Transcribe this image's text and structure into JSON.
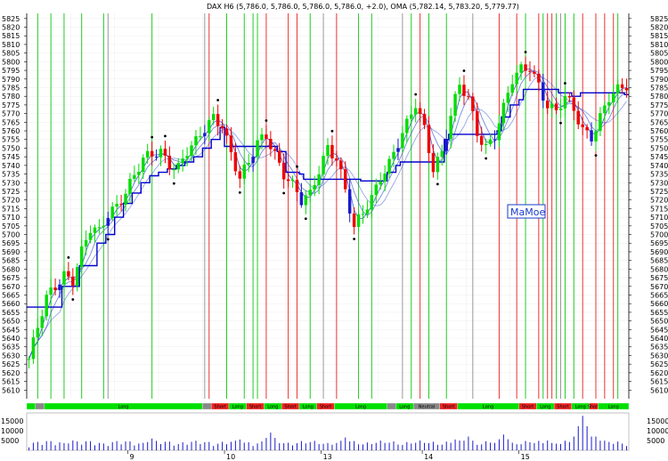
{
  "chart_data": {
    "type": "candlestick",
    "header_text": "DAX H6 (5,786.0, 5,786.0, 5,786.0, 5,786.0, +2.0), OMA (5,782.14, 5,783.20, 5,779.77)",
    "instrument": "DAX H6",
    "ohlc_last": [
      5786.0,
      5786.0,
      5786.0,
      5786.0
    ],
    "change": 2.0,
    "oma_values": [
      5782.14,
      5783.2,
      5779.77
    ],
    "watermark": "MaMoe",
    "price_axis": {
      "min": 5605,
      "max": 5828,
      "ticks": [
        5610,
        5615,
        5620,
        5625,
        5630,
        5635,
        5640,
        5645,
        5650,
        5655,
        5660,
        5665,
        5670,
        5675,
        5680,
        5685,
        5690,
        5695,
        5700,
        5705,
        5710,
        5715,
        5720,
        5725,
        5730,
        5735,
        5740,
        5745,
        5750,
        5755,
        5760,
        5765,
        5770,
        5775,
        5780,
        5785,
        5790,
        5795,
        5800,
        5805,
        5810,
        5815,
        5820,
        5825
      ]
    },
    "volume_axis": {
      "min": 0,
      "max": 19000,
      "ticks": [
        5000,
        10000,
        15000
      ]
    },
    "x_day_labels": [
      {
        "label": "9",
        "bar": 23
      },
      {
        "label": "10",
        "bar": 45
      },
      {
        "label": "13",
        "bar": 67
      },
      {
        "label": "14",
        "bar": 90
      },
      {
        "label": "15",
        "bar": 112
      }
    ],
    "close_path": [
      [
        0,
        5628
      ],
      [
        2,
        5645
      ],
      [
        4,
        5662
      ],
      [
        6,
        5670
      ],
      [
        8,
        5678
      ],
      [
        10,
        5675
      ],
      [
        12,
        5690
      ],
      [
        14,
        5702
      ],
      [
        16,
        5700
      ],
      [
        18,
        5712
      ],
      [
        20,
        5718
      ],
      [
        22,
        5726
      ],
      [
        24,
        5734
      ],
      [
        26,
        5742
      ],
      [
        28,
        5745
      ],
      [
        30,
        5748
      ],
      [
        32,
        5742
      ],
      [
        34,
        5740
      ],
      [
        36,
        5748
      ],
      [
        38,
        5752
      ],
      [
        40,
        5760
      ],
      [
        42,
        5768
      ],
      [
        44,
        5765
      ],
      [
        46,
        5748
      ],
      [
        48,
        5732
      ],
      [
        50,
        5740
      ],
      [
        52,
        5752
      ],
      [
        54,
        5758
      ],
      [
        56,
        5748
      ],
      [
        58,
        5736
      ],
      [
        60,
        5728
      ],
      [
        62,
        5718
      ],
      [
        64,
        5722
      ],
      [
        66,
        5738
      ],
      [
        68,
        5752
      ],
      [
        70,
        5745
      ],
      [
        72,
        5725
      ],
      [
        74,
        5702
      ],
      [
        76,
        5712
      ],
      [
        78,
        5722
      ],
      [
        80,
        5735
      ],
      [
        82,
        5742
      ],
      [
        84,
        5752
      ],
      [
        86,
        5762
      ],
      [
        88,
        5775
      ],
      [
        90,
        5762
      ],
      [
        92,
        5740
      ],
      [
        94,
        5748
      ],
      [
        96,
        5768
      ],
      [
        98,
        5785
      ],
      [
        100,
        5778
      ],
      [
        102,
        5760
      ],
      [
        104,
        5752
      ],
      [
        106,
        5758
      ],
      [
        108,
        5772
      ],
      [
        110,
        5788
      ],
      [
        112,
        5795
      ],
      [
        114,
        5798
      ],
      [
        116,
        5788
      ],
      [
        118,
        5775
      ],
      [
        120,
        5770
      ],
      [
        122,
        5778
      ],
      [
        124,
        5772
      ],
      [
        126,
        5762
      ],
      [
        128,
        5758
      ],
      [
        130,
        5768
      ],
      [
        132,
        5778
      ],
      [
        134,
        5782
      ],
      [
        136,
        5786
      ]
    ],
    "trailing_stop": [
      [
        0,
        5658
      ],
      [
        6,
        5658
      ],
      [
        8,
        5670
      ],
      [
        12,
        5682
      ],
      [
        16,
        5695
      ],
      [
        18,
        5700
      ],
      [
        20,
        5710
      ],
      [
        22,
        5718
      ],
      [
        24,
        5724
      ],
      [
        26,
        5730
      ],
      [
        28,
        5734
      ],
      [
        30,
        5736
      ],
      [
        32,
        5738
      ],
      [
        34,
        5740
      ],
      [
        36,
        5742
      ],
      [
        38,
        5745
      ],
      [
        40,
        5750
      ],
      [
        42,
        5755
      ],
      [
        44,
        5762
      ],
      [
        45,
        5751
      ],
      [
        55,
        5751
      ],
      [
        57,
        5748
      ],
      [
        59,
        5736
      ],
      [
        62,
        5735
      ],
      [
        63,
        5732
      ],
      [
        74,
        5732
      ],
      [
        76,
        5731
      ],
      [
        80,
        5731
      ],
      [
        82,
        5736
      ],
      [
        84,
        5740
      ],
      [
        85,
        5742
      ],
      [
        92,
        5742
      ],
      [
        95,
        5755
      ],
      [
        96,
        5758
      ],
      [
        106,
        5758
      ],
      [
        107,
        5760
      ],
      [
        108,
        5768
      ],
      [
        110,
        5775
      ],
      [
        112,
        5778
      ],
      [
        113,
        5784
      ],
      [
        120,
        5784
      ],
      [
        121,
        5782
      ],
      [
        124,
        5780
      ],
      [
        126,
        5782
      ],
      [
        136,
        5781
      ]
    ],
    "signal_lines": {
      "green": [
        2,
        5,
        8,
        12,
        17,
        28,
        45,
        49,
        51,
        52,
        64,
        75,
        78,
        87,
        91,
        95,
        113,
        117,
        120,
        122,
        124,
        134
      ],
      "red": [
        41,
        54,
        59,
        61,
        70,
        89,
        107,
        111,
        116,
        118,
        119,
        126,
        129,
        131,
        133
      ],
      "gray": [
        18,
        40,
        67,
        85,
        101,
        121
      ]
    },
    "signal_band": [
      [
        0,
        "g",
        ""
      ],
      [
        2,
        "gr",
        ""
      ],
      [
        4,
        "g",
        "Long"
      ],
      [
        40,
        "gr",
        ""
      ],
      [
        42,
        "r",
        "Short"
      ],
      [
        46,
        "g",
        "Long"
      ],
      [
        50,
        "r",
        "Short"
      ],
      [
        54,
        "g",
        "Long"
      ],
      [
        58,
        "r",
        "Short"
      ],
      [
        62,
        "g",
        "Long"
      ],
      [
        66,
        "r",
        "Short"
      ],
      [
        70,
        "g",
        "Long"
      ],
      [
        82,
        "gr",
        ""
      ],
      [
        84,
        "g",
        "Long"
      ],
      [
        88,
        "gr",
        "Neutral"
      ],
      [
        94,
        "r",
        "Short"
      ],
      [
        98,
        "g",
        "Long"
      ],
      [
        112,
        "r",
        "Short"
      ],
      [
        116,
        "g",
        "Long"
      ],
      [
        120,
        "r",
        "Short"
      ],
      [
        124,
        "g",
        "Long"
      ],
      [
        128,
        "r",
        "Short"
      ],
      [
        130,
        "g",
        "Long"
      ]
    ],
    "volume_peaks": [
      [
        10,
        5000
      ],
      [
        28,
        6000
      ],
      [
        48,
        5500
      ],
      [
        55,
        9000
      ],
      [
        72,
        6500
      ],
      [
        97,
        5500
      ],
      [
        100,
        7000
      ],
      [
        108,
        8000
      ],
      [
        118,
        5000
      ],
      [
        126,
        17500
      ],
      [
        129,
        7000
      ]
    ],
    "colors": {
      "up": "#00dd00",
      "down": "#ee0000",
      "neutral": "#1a1acc",
      "signal_green": "#22cc22",
      "signal_red": "#ee3333",
      "signal_gray": "#999999",
      "ma": "#1a3cc8",
      "stop": "#0000cc",
      "dots": "#000000",
      "volume": "#1a1acc"
    }
  }
}
